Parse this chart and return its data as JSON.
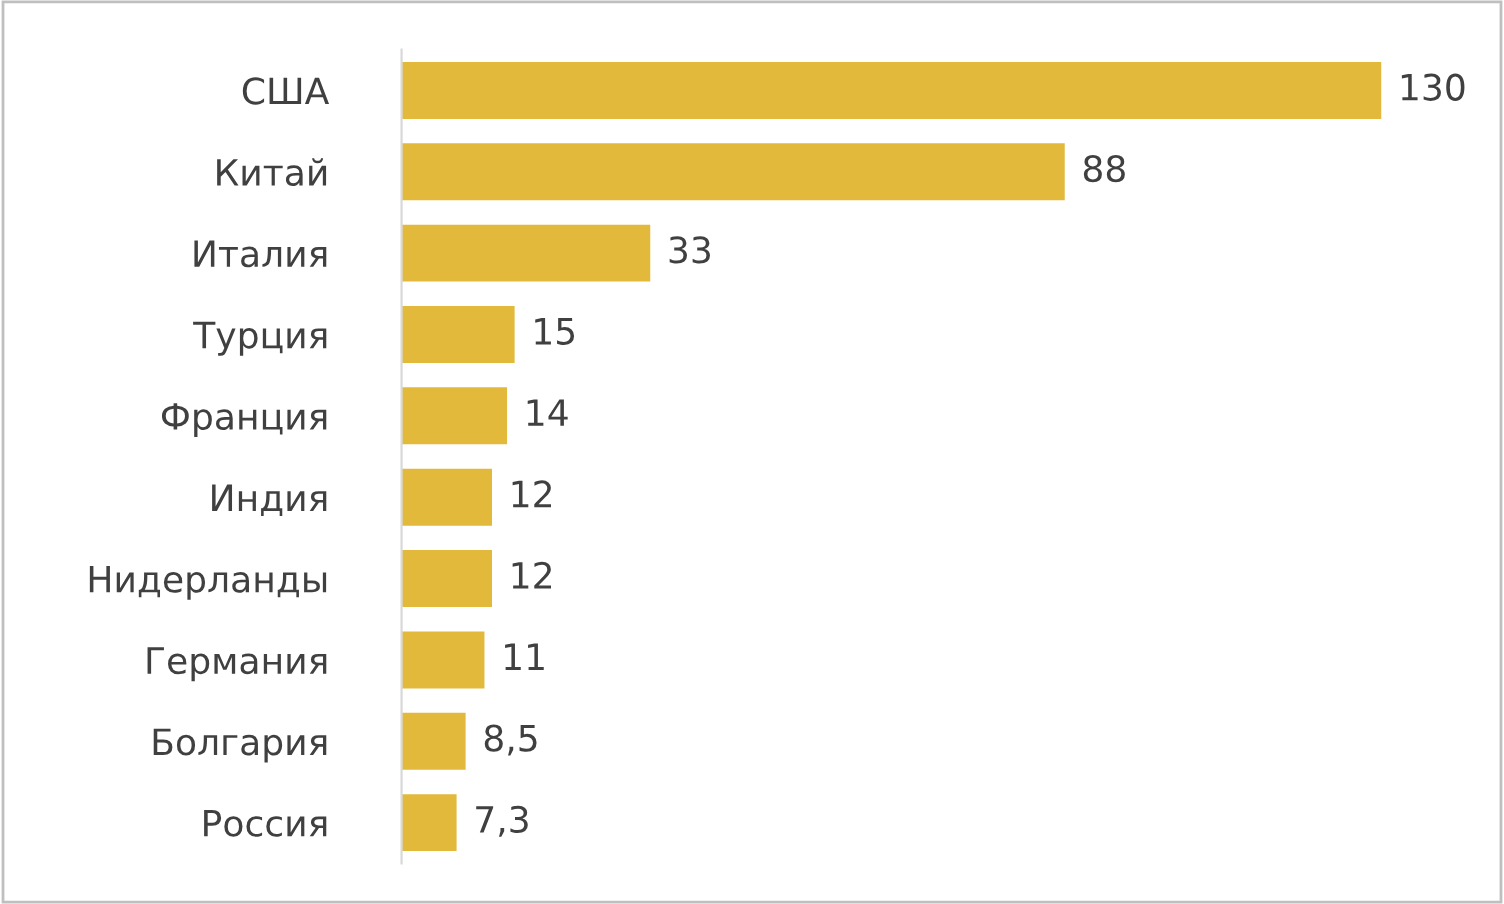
{
  "chart_data": {
    "type": "bar",
    "orientation": "horizontal",
    "categories": [
      "США",
      "Китай",
      "Италия",
      "Турция",
      "Франция",
      "Индия",
      "Нидерланды",
      "Германия",
      "Болгария",
      "Россия"
    ],
    "values": [
      130,
      88,
      33,
      15,
      14,
      12,
      12,
      11,
      8.5,
      7.3
    ],
    "value_labels": [
      "130",
      "88",
      "33",
      "15",
      "14",
      "12",
      "12",
      "11",
      "8,5",
      "7,3"
    ],
    "color": "#e2b93b",
    "grid": false,
    "legend": false
  }
}
